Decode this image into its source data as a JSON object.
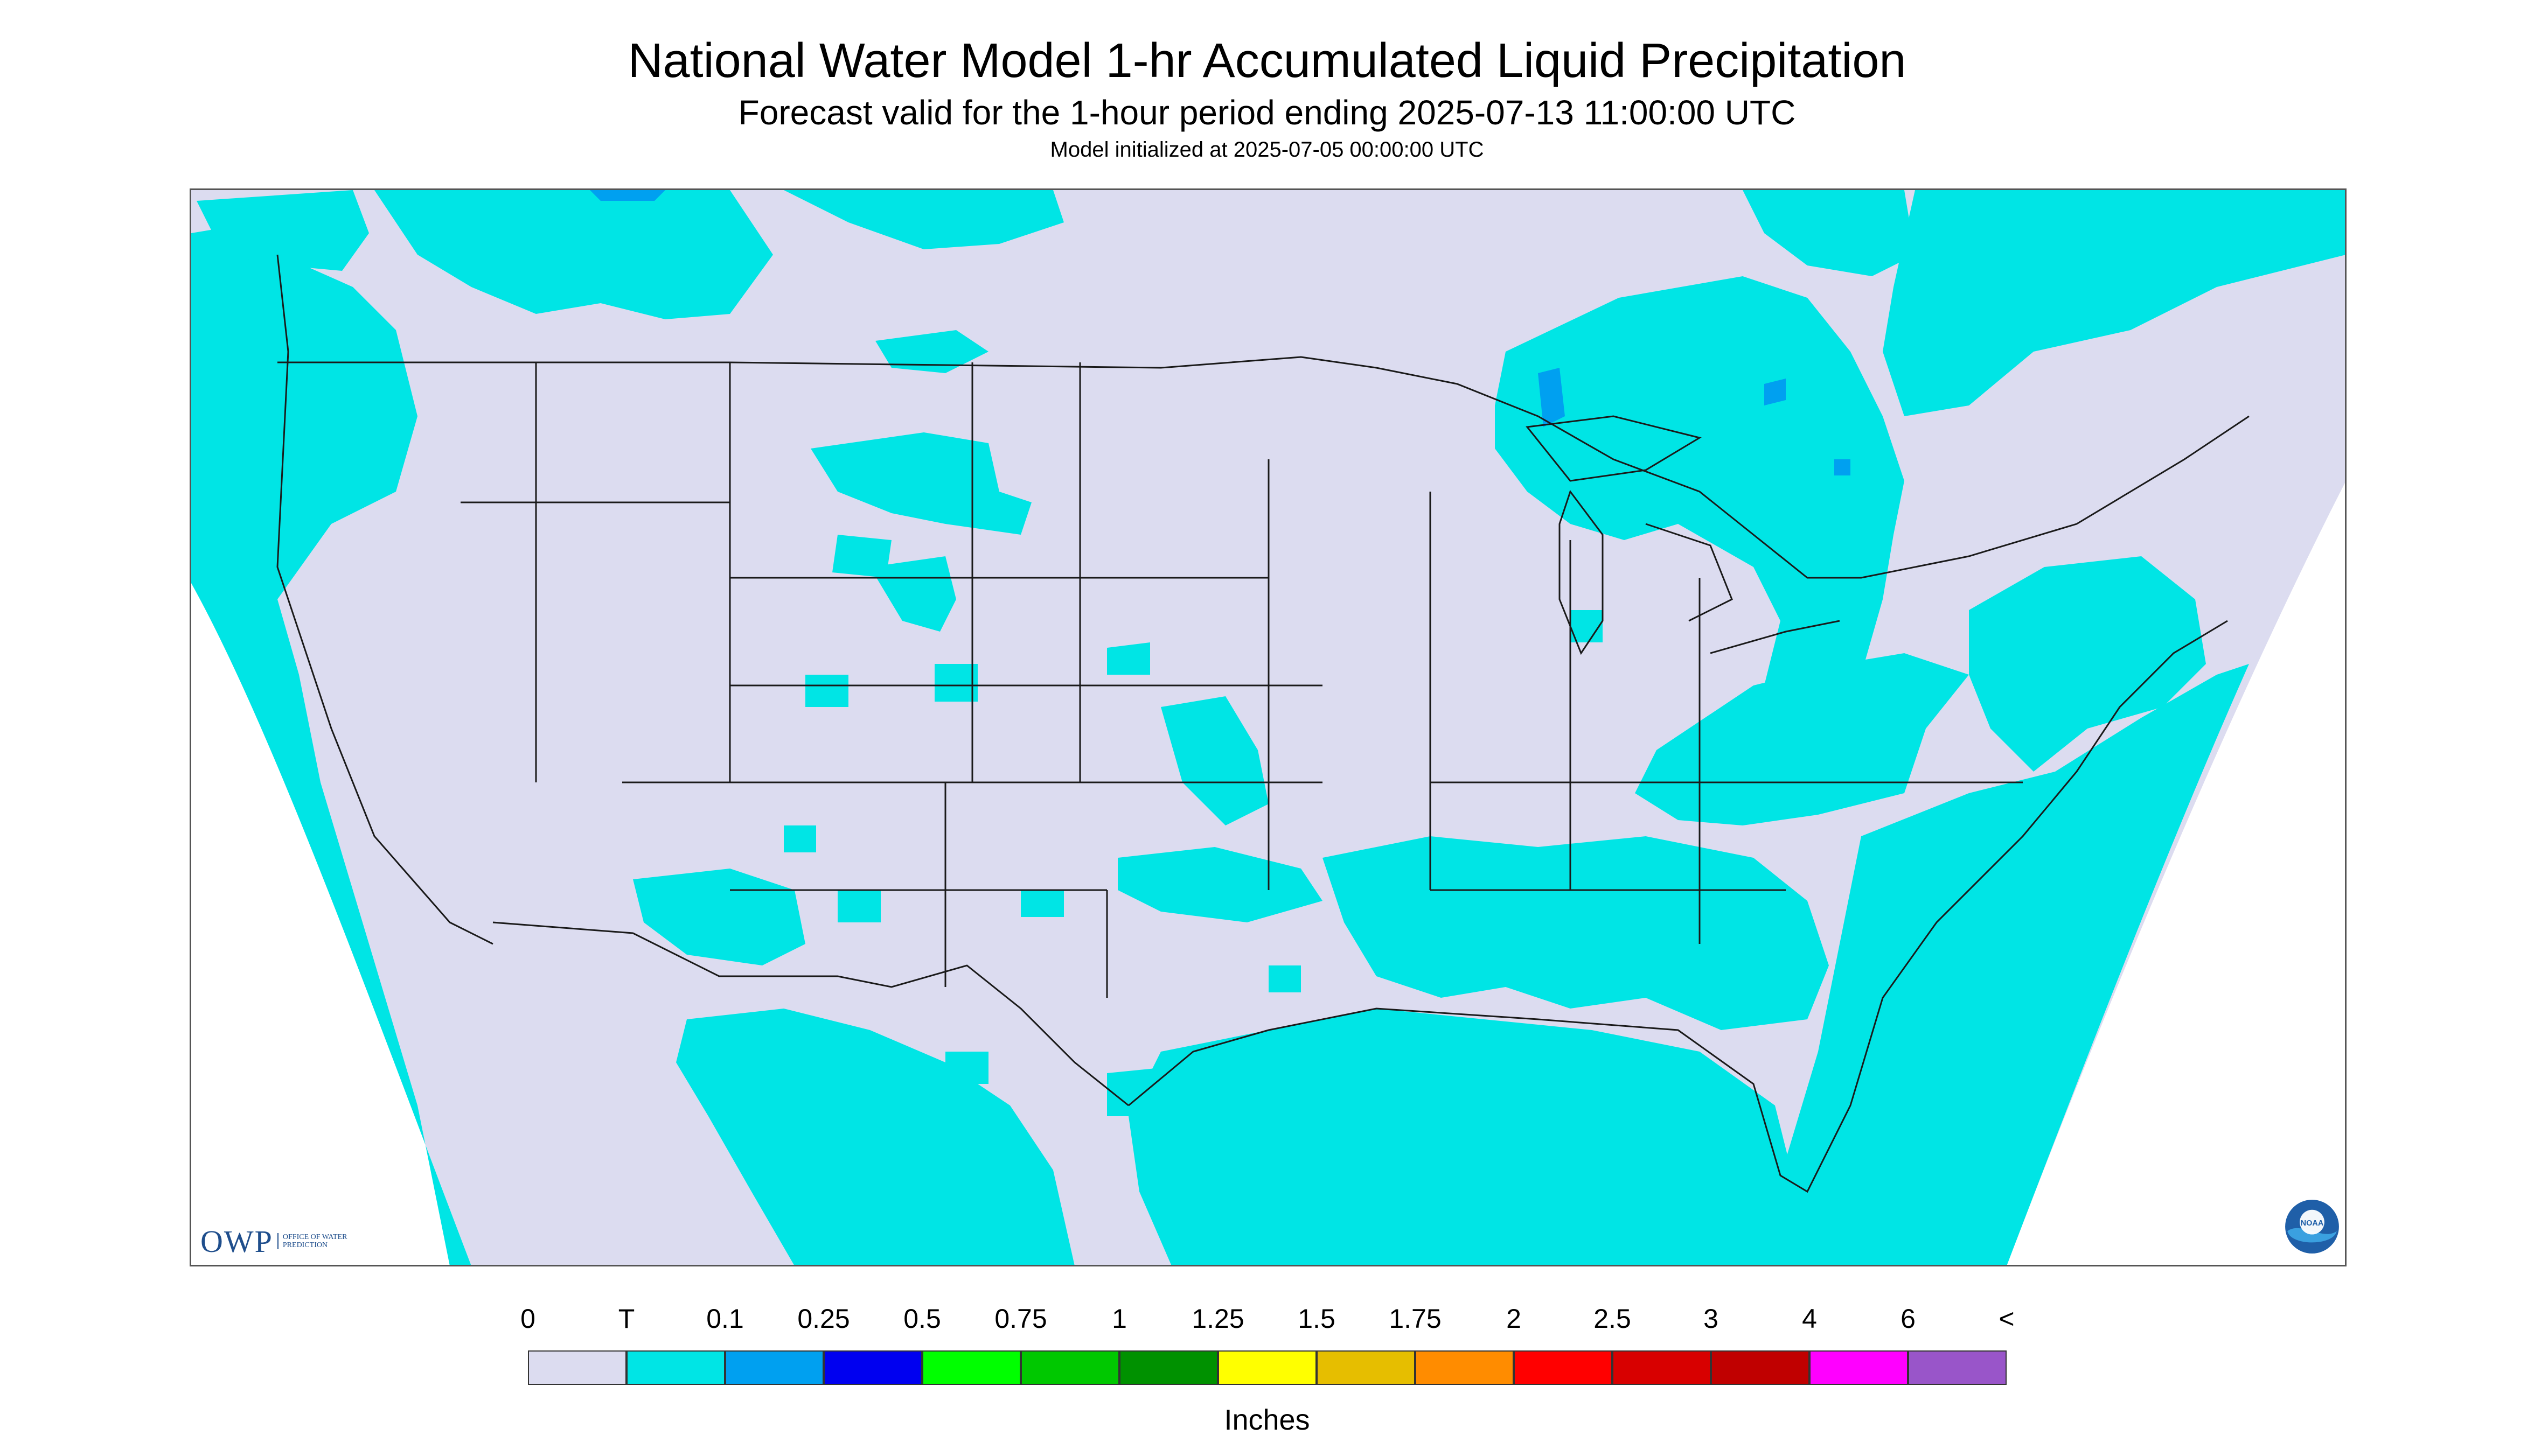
{
  "title": "National Water Model 1-hr Accumulated Liquid Precipitation",
  "subtitle": "Forecast valid for the 1-hour period ending 2025-07-13 11:00:00 UTC",
  "init": "Model initialized at 2025-07-05 00:00:00 UTC",
  "logos": {
    "owp": "OWP",
    "owp_sub": "OFFICE OF WATER PREDICTION",
    "noaa": "NOAA"
  },
  "legend": {
    "units": "Inches",
    "ticks": [
      "0",
      "T",
      "0.1",
      "0.25",
      "0.5",
      "0.75",
      "1",
      "1.25",
      "1.5",
      "1.75",
      "2",
      "2.5",
      "3",
      "4",
      "6",
      "<"
    ],
    "colors": [
      "#dcdcf0",
      "#00e5e5",
      "#00a0f0",
      "#0000f0",
      "#00ff00",
      "#00c800",
      "#009100",
      "#ffff00",
      "#e6be00",
      "#ff8c00",
      "#ff0000",
      "#d80000",
      "#c00000",
      "#ff00ff",
      "#9955c9"
    ]
  },
  "map": {
    "background_color": "#dcdcf0",
    "rain_color": "#00e5e5",
    "heavier_color": "#00a0f0",
    "outside_color": "#ffffff"
  }
}
